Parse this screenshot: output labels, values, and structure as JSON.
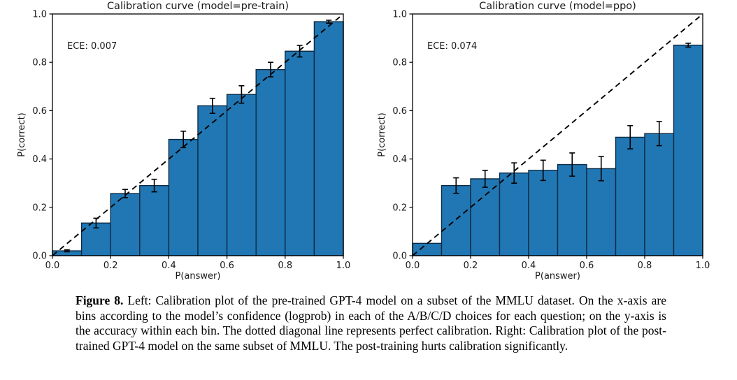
{
  "figure": {
    "caption_label": "Figure 8.",
    "caption_text": " Left: Calibration plot of the pre-trained GPT-4 model on a subset of the MMLU dataset. On the x-axis are bins according to the model’s confidence (logprob) in each of the A/B/C/D choices for each question; on the y-axis is the accuracy within each bin. The dotted diagonal line represents perfect calibration. Right: Calibration plot of the post-trained GPT-4 model on the same subset of MMLU. The post-training hurts calibration significantly."
  },
  "chart_data": [
    {
      "type": "bar",
      "title": "Calibration curve (model=pre-train)",
      "annotation": "ECE: 0.007",
      "xlabel": "P(answer)",
      "ylabel": "P(correct)",
      "xlim": [
        0,
        1
      ],
      "ylim": [
        0,
        1
      ],
      "xticks": [
        0.0,
        0.2,
        0.4,
        0.6,
        0.8,
        1.0
      ],
      "yticks": [
        0.0,
        0.2,
        0.4,
        0.6,
        0.8,
        1.0
      ],
      "bin_width": 0.1,
      "bin_centers": [
        0.05,
        0.15,
        0.25,
        0.35,
        0.45,
        0.55,
        0.65,
        0.75,
        0.85,
        0.95
      ],
      "values": [
        0.02,
        0.135,
        0.257,
        0.29,
        0.481,
        0.62,
        0.667,
        0.77,
        0.846,
        0.968
      ],
      "errors": [
        0.004,
        0.02,
        0.017,
        0.026,
        0.034,
        0.031,
        0.036,
        0.03,
        0.024,
        0.006
      ],
      "diagonal": {
        "from": [
          0,
          0
        ],
        "to": [
          1,
          1
        ],
        "style": "dashed",
        "meaning": "perfect calibration"
      },
      "grid": false,
      "legend": null,
      "bar_color": "#2077b4",
      "bar_edge_color": "#0d2b43",
      "errorbar_color": "#000000",
      "diagonal_color": "#000000"
    },
    {
      "type": "bar",
      "title": "Calibration curve (model=ppo)",
      "annotation": "ECE: 0.074",
      "xlabel": "P(answer)",
      "ylabel": "P(correct)",
      "xlim": [
        0,
        1
      ],
      "ylim": [
        0,
        1
      ],
      "xticks": [
        0.0,
        0.2,
        0.4,
        0.6,
        0.8,
        1.0
      ],
      "yticks": [
        0.0,
        0.2,
        0.4,
        0.6,
        0.8,
        1.0
      ],
      "bin_width": 0.1,
      "bin_centers": [
        0.05,
        0.15,
        0.25,
        0.35,
        0.45,
        0.55,
        0.65,
        0.75,
        0.85,
        0.95
      ],
      "values": [
        0.051,
        0.29,
        0.318,
        0.342,
        0.353,
        0.377,
        0.36,
        0.49,
        0.505,
        0.871
      ],
      "errors": [
        0,
        0.032,
        0.035,
        0.042,
        0.042,
        0.048,
        0.05,
        0.048,
        0.05,
        0.008
      ],
      "diagonal": {
        "from": [
          0,
          0
        ],
        "to": [
          1,
          1
        ],
        "style": "dashed",
        "meaning": "perfect calibration"
      },
      "grid": false,
      "legend": null,
      "bar_color": "#2077b4",
      "bar_edge_color": "#0d2b43",
      "errorbar_color": "#000000",
      "diagonal_color": "#000000"
    }
  ]
}
